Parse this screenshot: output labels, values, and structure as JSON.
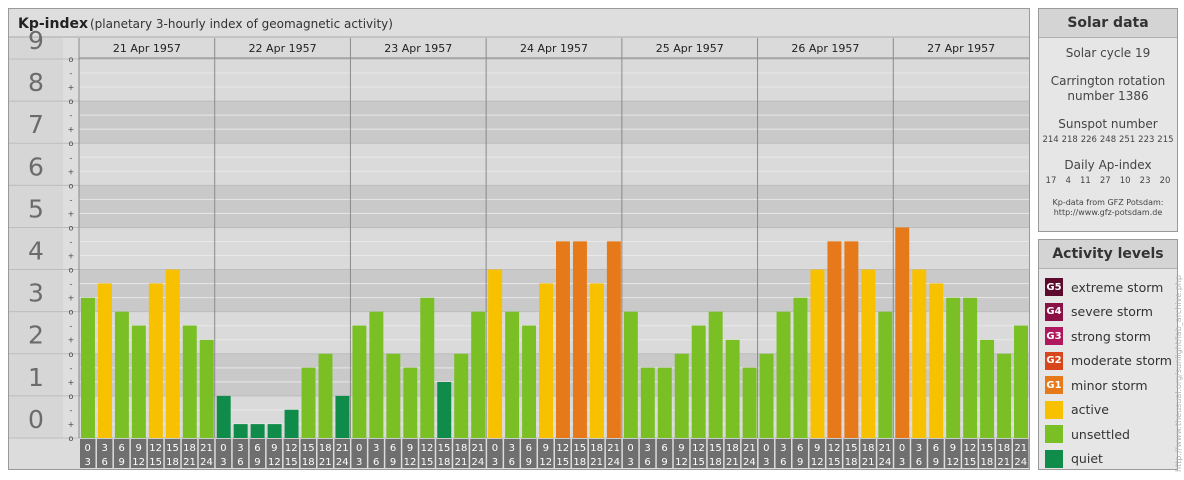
{
  "header": {
    "title": "Kp-index",
    "subtitle": "(planetary 3-hourly index of geomagnetic activity)"
  },
  "chart_data": {
    "type": "bar",
    "title": "Kp-index",
    "subtitle": "(planetary 3-hourly index of geomagnetic activity)",
    "ylim": [
      0,
      9
    ],
    "y_ticks": [
      "0",
      "1",
      "2",
      "3",
      "4",
      "5",
      "6",
      "7",
      "8",
      "9"
    ],
    "sub_ticks": [
      "+",
      "o",
      "-"
    ],
    "days": [
      "21 Apr 1957",
      "22 Apr 1957",
      "23 Apr 1957",
      "24 Apr 1957",
      "25 Apr 1957",
      "26 Apr 1957",
      "27 Apr 1957"
    ],
    "interval_starts": [
      "0",
      "3",
      "6",
      "9",
      "12",
      "15",
      "18",
      "21"
    ],
    "interval_ends": [
      "3",
      "6",
      "9",
      "12",
      "15",
      "18",
      "21",
      "24"
    ],
    "values": [
      [
        3.33,
        3.67,
        3.0,
        2.67,
        3.67,
        4.0,
        2.67,
        2.33
      ],
      [
        1.0,
        0.33,
        0.33,
        0.33,
        0.67,
        1.67,
        2.0,
        1.0
      ],
      [
        2.67,
        3.0,
        2.0,
        1.67,
        3.33,
        1.33,
        2.0,
        3.0
      ],
      [
        4.0,
        3.0,
        2.67,
        3.67,
        4.67,
        4.67,
        3.67,
        4.67
      ],
      [
        3.0,
        1.67,
        1.67,
        2.0,
        2.67,
        3.0,
        2.33,
        1.67
      ],
      [
        2.0,
        3.0,
        3.33,
        4.0,
        4.67,
        4.67,
        4.0,
        3.0
      ],
      [
        5.0,
        4.0,
        3.67,
        3.33,
        3.33,
        2.33,
        2.0,
        2.67
      ]
    ],
    "grid": true
  },
  "solar": {
    "title": "Solar data",
    "cycle_label": "Solar cycle 19",
    "carrington_line1": "Carrington rotation",
    "carrington_line2": "number 1386",
    "sunspot_label": "Sunspot number",
    "sunspot_values": [
      "214",
      "218",
      "226",
      "248",
      "251",
      "223",
      "215"
    ],
    "ap_label": "Daily Ap-index",
    "ap_values": [
      "17",
      "4",
      "11",
      "27",
      "10",
      "23",
      "20"
    ],
    "source_line1": "Kp-data from GFZ Potsdam:",
    "source_line2": "http://www.gfz-potsdam.de"
  },
  "activity": {
    "title": "Activity levels",
    "levels": [
      {
        "code": "G5",
        "label": "extreme storm",
        "color": "#5c0a2e"
      },
      {
        "code": "G4",
        "label": "severe storm",
        "color": "#8a1046"
      },
      {
        "code": "G3",
        "label": "strong storm",
        "color": "#b0185e"
      },
      {
        "code": "G2",
        "label": "moderate storm",
        "color": "#d8461c"
      },
      {
        "code": "G1",
        "label": "minor storm",
        "color": "#e67a1a"
      },
      {
        "code": "",
        "label": "active",
        "color": "#f7c100"
      },
      {
        "code": "",
        "label": "unsettled",
        "color": "#7ac025"
      },
      {
        "code": "",
        "label": "quiet",
        "color": "#0f8c4a"
      }
    ]
  },
  "watermark": "http://www.theusual.org/sunlight/lab_archive.php"
}
